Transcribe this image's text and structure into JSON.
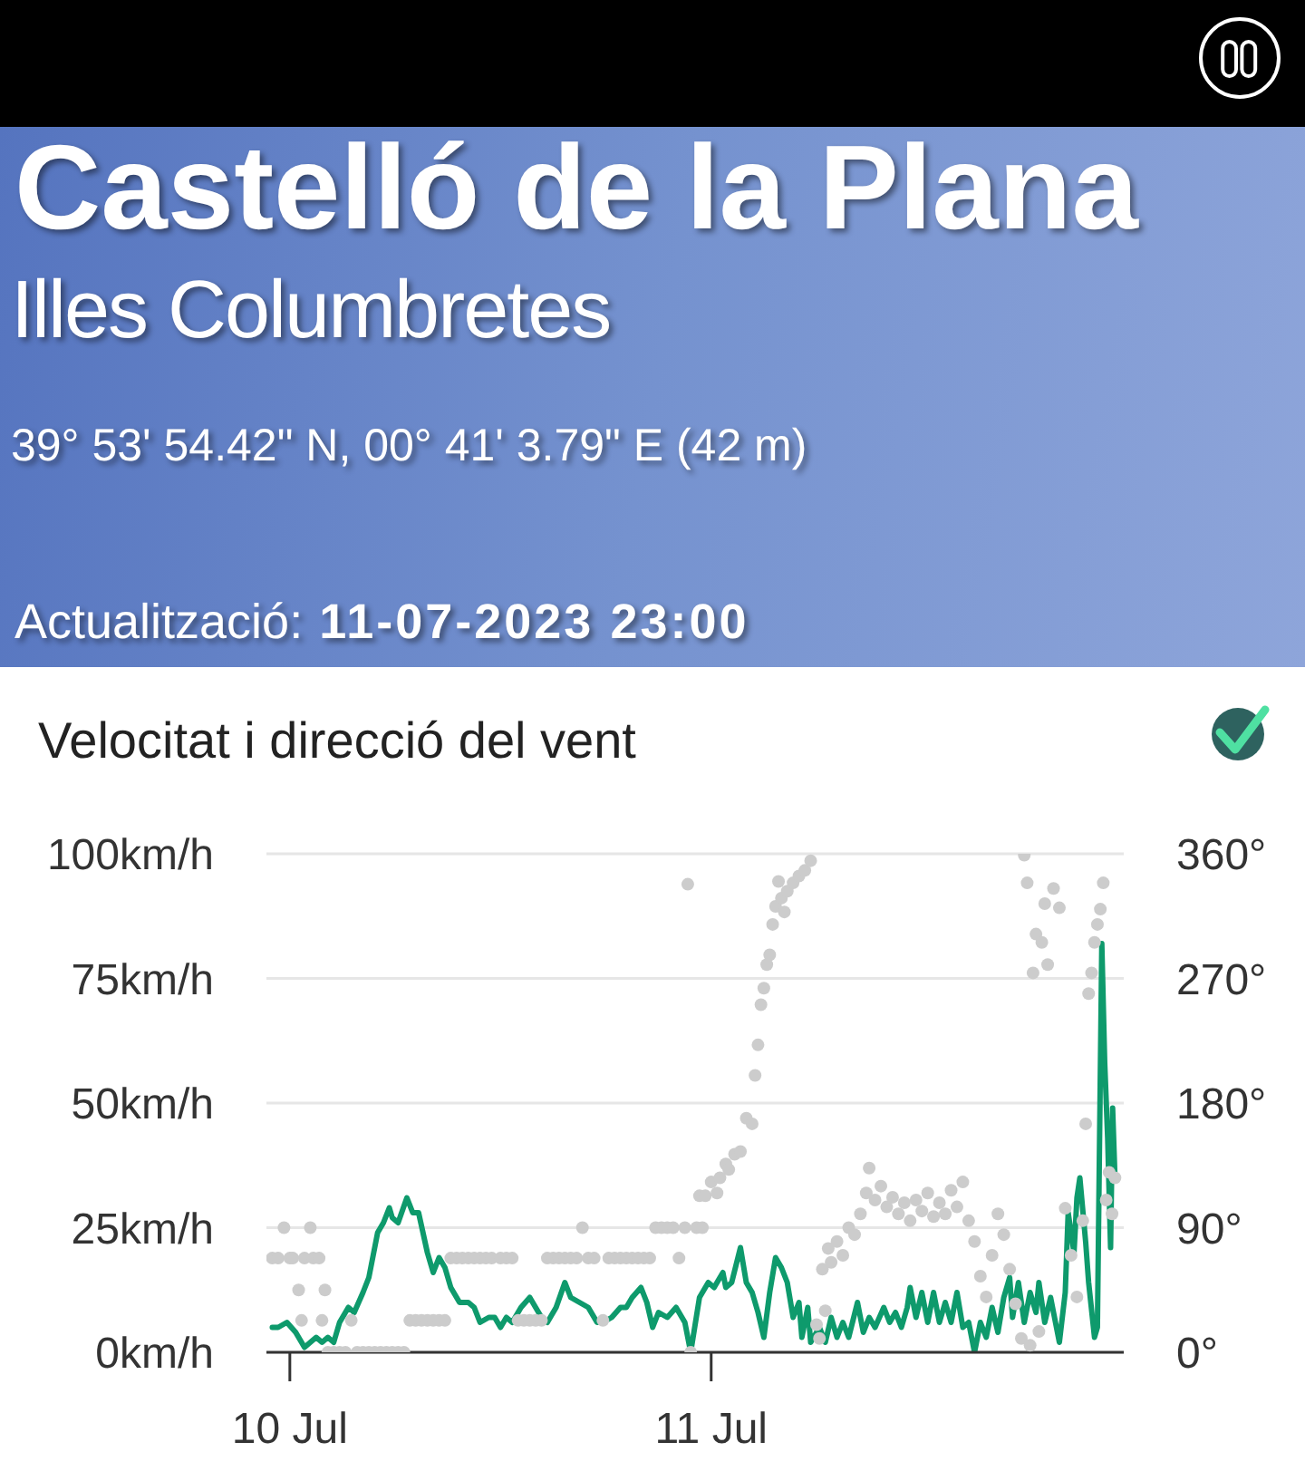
{
  "chart_data": {
    "type": "line",
    "title": "Velocitat i direcció del vent",
    "annotations": [
      "Castelló de la Plana",
      "Illes Columbretes",
      "39° 53' 54.42\" N, 00° 41' 3.79\" E (42 m)",
      "Actualització:",
      "11-07-2023 23:00"
    ],
    "xlim": [
      "2023-07-09T22:40",
      "2023-07-11T23:30"
    ],
    "xticks": [
      {
        "value": "2023-07-10",
        "label": "10 Jul"
      },
      {
        "value": "2023-07-11",
        "label": "11 Jul"
      }
    ],
    "ylim": [
      0,
      100
    ],
    "yticks": [
      {
        "value": 0,
        "label": "0km/h"
      },
      {
        "value": 25,
        "label": "25km/h"
      },
      {
        "value": 50,
        "label": "50km/h"
      },
      {
        "value": 75,
        "label": "75km/h"
      },
      {
        "value": 100,
        "label": "100km/h"
      }
    ],
    "y2lim": [
      0,
      360
    ],
    "y2ticks": [
      {
        "value": 0,
        "label": "0°"
      },
      {
        "value": 90,
        "label": "90°"
      },
      {
        "value": 180,
        "label": "180°"
      },
      {
        "value": 270,
        "label": "270°"
      },
      {
        "value": 360,
        "label": "360°"
      }
    ],
    "grid": "y",
    "series": [
      {
        "type": "scatter",
        "axis": "y2",
        "color": "#cccccc",
        "marker": "circle",
        "x": [
          "2023-07-09T23:00",
          "2023-07-09T23:20",
          "2023-07-09T23:40",
          "2023-07-10T00:00",
          "2023-07-10T00:10",
          "2023-07-10T00:30",
          "2023-07-10T00:40",
          "2023-07-10T00:50",
          "2023-07-10T01:10",
          "2023-07-10T01:20",
          "2023-07-10T01:40",
          "2023-07-10T01:50",
          "2023-07-10T02:00",
          "2023-07-10T02:10",
          "2023-07-10T02:30",
          "2023-07-10T02:50",
          "2023-07-10T03:10",
          "2023-07-10T03:30",
          "2023-07-10T03:50",
          "2023-07-10T04:10",
          "2023-07-10T04:30",
          "2023-07-10T04:50",
          "2023-07-10T05:10",
          "2023-07-10T05:30",
          "2023-07-10T05:50",
          "2023-07-10T06:10",
          "2023-07-10T06:30",
          "2023-07-10T06:50",
          "2023-07-10T07:10",
          "2023-07-10T07:30",
          "2023-07-10T07:50",
          "2023-07-10T08:10",
          "2023-07-10T08:30",
          "2023-07-10T08:50",
          "2023-07-10T09:10",
          "2023-07-10T09:30",
          "2023-07-10T09:50",
          "2023-07-10T10:10",
          "2023-07-10T10:30",
          "2023-07-10T10:50",
          "2023-07-10T11:10",
          "2023-07-10T11:30",
          "2023-07-10T12:00",
          "2023-07-10T12:20",
          "2023-07-10T12:40",
          "2023-07-10T13:00",
          "2023-07-10T13:20",
          "2023-07-10T13:40",
          "2023-07-10T14:00",
          "2023-07-10T14:20",
          "2023-07-10T14:40",
          "2023-07-10T15:00",
          "2023-07-10T15:20",
          "2023-07-10T15:40",
          "2023-07-10T16:00",
          "2023-07-10T16:20",
          "2023-07-10T16:40",
          "2023-07-10T17:00",
          "2023-07-10T17:20",
          "2023-07-10T17:50",
          "2023-07-10T18:10",
          "2023-07-10T18:30",
          "2023-07-10T18:50",
          "2023-07-10T19:10",
          "2023-07-10T19:30",
          "2023-07-10T19:50",
          "2023-07-10T20:10",
          "2023-07-10T20:30",
          "2023-07-10T20:50",
          "2023-07-10T21:10",
          "2023-07-10T21:30",
          "2023-07-10T21:50",
          "2023-07-10T22:10",
          "2023-07-10T22:30",
          "2023-07-10T22:40",
          "2023-07-10T22:50",
          "2023-07-10T23:10",
          "2023-07-10T23:20",
          "2023-07-10T23:30",
          "2023-07-10T23:40",
          "2023-07-11T00:00",
          "2023-07-11T00:20",
          "2023-07-11T00:30",
          "2023-07-11T00:50",
          "2023-07-11T01:00",
          "2023-07-11T01:20",
          "2023-07-11T01:40",
          "2023-07-11T02:00",
          "2023-07-11T02:20",
          "2023-07-11T02:30",
          "2023-07-11T02:40",
          "2023-07-11T02:50",
          "2023-07-11T03:00",
          "2023-07-11T03:10",
          "2023-07-11T03:20",
          "2023-07-11T03:30",
          "2023-07-11T03:40",
          "2023-07-11T03:50",
          "2023-07-11T04:00",
          "2023-07-11T04:10",
          "2023-07-11T04:20",
          "2023-07-11T04:40",
          "2023-07-11T05:00",
          "2023-07-11T05:20",
          "2023-07-11T05:40",
          "2023-07-11T06:00",
          "2023-07-11T06:10",
          "2023-07-11T06:20",
          "2023-07-11T06:30",
          "2023-07-11T06:40",
          "2023-07-11T06:50",
          "2023-07-11T07:10",
          "2023-07-11T07:30",
          "2023-07-11T07:50",
          "2023-07-11T08:10",
          "2023-07-11T08:30",
          "2023-07-11T08:50",
          "2023-07-11T09:00",
          "2023-07-11T09:20",
          "2023-07-11T09:40",
          "2023-07-11T10:00",
          "2023-07-11T10:20",
          "2023-07-11T10:40",
          "2023-07-11T11:00",
          "2023-07-11T11:20",
          "2023-07-11T11:40",
          "2023-07-11T12:00",
          "2023-07-11T12:20",
          "2023-07-11T12:40",
          "2023-07-11T13:00",
          "2023-07-11T13:20",
          "2023-07-11T13:40",
          "2023-07-11T14:00",
          "2023-07-11T14:20",
          "2023-07-11T14:40",
          "2023-07-11T15:00",
          "2023-07-11T15:20",
          "2023-07-11T15:40",
          "2023-07-11T16:00",
          "2023-07-11T16:20",
          "2023-07-11T16:40",
          "2023-07-11T17:00",
          "2023-07-11T17:20",
          "2023-07-11T17:40",
          "2023-07-11T17:50",
          "2023-07-11T18:00",
          "2023-07-11T18:10",
          "2023-07-11T18:20",
          "2023-07-11T18:30",
          "2023-07-11T18:40",
          "2023-07-11T18:50",
          "2023-07-11T19:00",
          "2023-07-11T19:10",
          "2023-07-11T19:30",
          "2023-07-11T19:50",
          "2023-07-11T20:10",
          "2023-07-11T20:30",
          "2023-07-11T20:50",
          "2023-07-11T21:10",
          "2023-07-11T21:20",
          "2023-07-11T21:30",
          "2023-07-11T21:40",
          "2023-07-11T21:50",
          "2023-07-11T22:00",
          "2023-07-11T22:10",
          "2023-07-11T22:20",
          "2023-07-11T22:30",
          "2023-07-11T22:40",
          "2023-07-11T22:50",
          "2023-07-11T23:00"
        ],
        "values": [
          68,
          68,
          90,
          68,
          68,
          45,
          23,
          68,
          90,
          68,
          68,
          23,
          45,
          0,
          0,
          0,
          0,
          23,
          0,
          0,
          0,
          0,
          0,
          0,
          0,
          0,
          0,
          23,
          23,
          23,
          23,
          23,
          23,
          23,
          68,
          68,
          68,
          68,
          68,
          68,
          68,
          68,
          68,
          68,
          68,
          23,
          23,
          23,
          23,
          23,
          68,
          68,
          68,
          68,
          68,
          68,
          90,
          68,
          68,
          23,
          68,
          68,
          68,
          68,
          68,
          68,
          68,
          68,
          90,
          90,
          90,
          90,
          68,
          90,
          338,
          0,
          90,
          113,
          90,
          113,
          123,
          115,
          126,
          136,
          132,
          143,
          145,
          169,
          165,
          200,
          222,
          251,
          263,
          280,
          287,
          309,
          322,
          340,
          328,
          318,
          333,
          339,
          344,
          348,
          355,
          20,
          10,
          60,
          30,
          75,
          65,
          80,
          70,
          90,
          85,
          100,
          115,
          133,
          110,
          120,
          105,
          112,
          100,
          108,
          95,
          110,
          102,
          115,
          98,
          108,
          100,
          117,
          105,
          123,
          95,
          80,
          55,
          40,
          70,
          100,
          85,
          60,
          35,
          10,
          359,
          339,
          5,
          274,
          302,
          15,
          296,
          324,
          280,
          335,
          321,
          104,
          70,
          40,
          95,
          165,
          259,
          274,
          296,
          309,
          320,
          339,
          110,
          130,
          100,
          126
        ]
      },
      {
        "color": "#0e9a6c",
        "marker": "none",
        "line_style": "solid",
        "x": [
          "2023-07-09T23:00",
          "2023-07-09T23:20",
          "2023-07-09T23:50",
          "2023-07-10T00:20",
          "2023-07-10T00:50",
          "2023-07-10T01:10",
          "2023-07-10T01:30",
          "2023-07-10T01:50",
          "2023-07-10T02:10",
          "2023-07-10T02:30",
          "2023-07-10T02:50",
          "2023-07-10T03:20",
          "2023-07-10T03:40",
          "2023-07-10T04:10",
          "2023-07-10T04:30",
          "2023-07-10T05:00",
          "2023-07-10T05:20",
          "2023-07-10T05:40",
          "2023-07-10T05:50",
          "2023-07-10T06:10",
          "2023-07-10T06:40",
          "2023-07-10T07:00",
          "2023-07-10T07:20",
          "2023-07-10T07:50",
          "2023-07-10T08:10",
          "2023-07-10T08:30",
          "2023-07-10T08:50",
          "2023-07-10T09:10",
          "2023-07-10T09:40",
          "2023-07-10T10:10",
          "2023-07-10T10:30",
          "2023-07-10T10:50",
          "2023-07-10T11:20",
          "2023-07-10T11:40",
          "2023-07-10T12:00",
          "2023-07-10T12:20",
          "2023-07-10T12:40",
          "2023-07-10T13:10",
          "2023-07-10T13:40",
          "2023-07-10T14:00",
          "2023-07-10T14:20",
          "2023-07-10T14:40",
          "2023-07-10T15:10",
          "2023-07-10T15:40",
          "2023-07-10T16:00",
          "2023-07-10T16:30",
          "2023-07-10T17:00",
          "2023-07-10T17:30",
          "2023-07-10T17:50",
          "2023-07-10T18:20",
          "2023-07-10T18:50",
          "2023-07-10T19:10",
          "2023-07-10T19:30",
          "2023-07-10T20:00",
          "2023-07-10T20:20",
          "2023-07-10T20:40",
          "2023-07-10T21:00",
          "2023-07-10T21:30",
          "2023-07-10T22:00",
          "2023-07-10T22:30",
          "2023-07-10T22:50",
          "2023-07-10T23:20",
          "2023-07-10T23:50",
          "2023-07-11T00:10",
          "2023-07-11T00:40",
          "2023-07-11T00:50",
          "2023-07-11T01:10",
          "2023-07-11T01:40",
          "2023-07-11T02:00",
          "2023-07-11T02:20",
          "2023-07-11T02:40",
          "2023-07-11T03:00",
          "2023-07-11T03:20",
          "2023-07-11T03:40",
          "2023-07-11T04:00",
          "2023-07-11T04:20",
          "2023-07-11T04:40",
          "2023-07-11T05:00",
          "2023-07-11T05:10",
          "2023-07-11T05:30",
          "2023-07-11T05:40",
          "2023-07-11T06:10",
          "2023-07-11T06:30",
          "2023-07-11T06:50",
          "2023-07-11T07:10",
          "2023-07-11T07:30",
          "2023-07-11T07:50",
          "2023-07-11T08:20",
          "2023-07-11T08:40",
          "2023-07-11T09:00",
          "2023-07-11T09:20",
          "2023-07-11T09:50",
          "2023-07-11T10:10",
          "2023-07-11T10:30",
          "2023-07-11T10:50",
          "2023-07-11T11:10",
          "2023-07-11T11:20",
          "2023-07-11T11:40",
          "2023-07-11T12:00",
          "2023-07-11T12:20",
          "2023-07-11T12:40",
          "2023-07-11T13:00",
          "2023-07-11T13:20",
          "2023-07-11T13:40",
          "2023-07-11T14:00",
          "2023-07-11T14:20",
          "2023-07-11T14:40",
          "2023-07-11T15:00",
          "2023-07-11T15:20",
          "2023-07-11T15:40",
          "2023-07-11T16:00",
          "2023-07-11T16:20",
          "2023-07-11T16:40",
          "2023-07-11T17:00",
          "2023-07-11T17:10",
          "2023-07-11T17:30",
          "2023-07-11T17:50",
          "2023-07-11T18:10",
          "2023-07-11T18:30",
          "2023-07-11T18:40",
          "2023-07-11T19:00",
          "2023-07-11T19:20",
          "2023-07-11T19:50",
          "2023-07-11T20:10",
          "2023-07-11T20:20",
          "2023-07-11T20:40",
          "2023-07-11T20:50",
          "2023-07-11T21:00",
          "2023-07-11T21:20",
          "2023-07-11T21:30",
          "2023-07-11T21:50",
          "2023-07-11T22:00",
          "2023-07-11T22:15",
          "2023-07-11T22:25",
          "2023-07-11T22:35",
          "2023-07-11T22:45",
          "2023-07-11T22:52",
          "2023-07-11T23:00"
        ],
        "values": [
          5,
          5,
          6,
          4,
          1,
          2,
          3,
          2,
          3,
          2,
          6,
          9,
          8,
          12,
          15,
          24,
          26,
          29,
          27,
          26,
          31,
          28,
          28,
          20,
          16,
          19,
          17,
          13,
          10,
          10,
          9,
          6,
          7,
          7,
          5,
          7,
          6,
          9,
          11,
          9,
          7,
          6,
          9,
          14,
          11,
          10,
          9,
          6,
          6,
          7,
          9,
          9,
          11,
          13,
          10,
          5,
          8,
          7,
          9,
          6,
          0,
          11,
          14,
          13,
          16,
          13,
          14,
          21,
          14,
          12,
          8,
          3,
          12,
          19,
          17,
          14,
          7,
          10,
          3,
          9,
          2,
          5,
          2,
          7,
          3,
          6,
          3,
          10,
          4,
          7,
          5,
          9,
          6,
          8,
          5,
          9,
          13,
          7,
          12,
          6,
          12,
          6,
          10,
          6,
          12,
          5,
          6,
          0,
          6,
          3,
          9,
          4,
          11,
          15,
          7,
          14,
          6,
          12,
          8,
          14,
          6,
          11,
          2,
          12,
          28,
          20,
          31,
          35,
          22,
          14,
          3,
          5,
          82,
          58,
          43,
          21,
          49,
          35
        ]
      }
    ]
  }
}
